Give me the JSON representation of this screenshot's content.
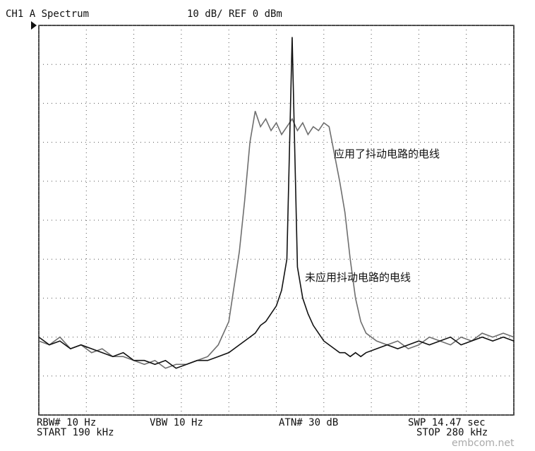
{
  "chart_data": {
    "type": "line",
    "title": "CH1 A  Spectrum",
    "subtitle": "10 dB/ REF 0 dBm",
    "footer": [
      "RBW# 10 Hz",
      "VBW 10 Hz",
      "ATN# 30 dB",
      "SWP 14.47 sec",
      "START 190 kHz",
      "STOP 280 kHz"
    ],
    "watermark": "embcom.net",
    "xlim": [
      190,
      280
    ],
    "ylim": [
      -100,
      0
    ],
    "xticks": [
      190,
      199,
      208,
      217,
      226,
      235,
      244,
      253,
      262,
      271,
      280
    ],
    "yticks": [
      0,
      -10,
      -20,
      -30,
      -40,
      -50,
      -60,
      -70,
      -80,
      -90,
      -100
    ],
    "grid": true,
    "x": [
      190,
      192,
      194,
      196,
      198,
      200,
      202,
      204,
      206,
      208,
      210,
      212,
      214,
      216,
      218,
      220,
      222,
      224,
      226,
      228,
      229,
      230,
      231,
      232,
      233,
      234,
      235,
      236,
      237,
      238,
      239,
      240,
      241,
      242,
      243,
      244,
      245,
      246,
      247,
      248,
      249,
      250,
      251,
      252,
      254,
      256,
      258,
      260,
      262,
      264,
      266,
      268,
      270,
      272,
      274,
      276,
      278,
      280
    ],
    "series": [
      {
        "name": "应用了抖动电路的电线",
        "color": "#6e6e6e",
        "values": [
          -81,
          -82,
          -80,
          -83,
          -82,
          -84,
          -83,
          -85,
          -85,
          -86,
          -87,
          -86,
          -88,
          -87,
          -87,
          -86,
          -85,
          -82,
          -76,
          -58,
          -45,
          -30,
          -22,
          -26,
          -24,
          -27,
          -25,
          -28,
          -26,
          -24,
          -27,
          -25,
          -28,
          -26,
          -27,
          -25,
          -26,
          -33,
          -40,
          -48,
          -60,
          -70,
          -76,
          -79,
          -81,
          -82,
          -81,
          -83,
          -82,
          -80,
          -81,
          -82,
          -80,
          -81,
          -79,
          -80,
          -79,
          -80
        ]
      },
      {
        "name": "未应用抖动电路的电线",
        "color": "#111111",
        "values": [
          -80,
          -82,
          -81,
          -83,
          -82,
          -83,
          -84,
          -85,
          -84,
          -86,
          -86,
          -87,
          -86,
          -88,
          -87,
          -86,
          -86,
          -85,
          -84,
          -82,
          -81,
          -80,
          -79,
          -77,
          -76,
          -74,
          -72,
          -68,
          -60,
          -3,
          -62,
          -70,
          -74,
          -77,
          -79,
          -81,
          -82,
          -83,
          -84,
          -84,
          -85,
          -84,
          -85,
          -84,
          -83,
          -82,
          -83,
          -82,
          -81,
          -82,
          -81,
          -80,
          -82,
          -81,
          -80,
          -81,
          -80,
          -81
        ]
      }
    ]
  }
}
